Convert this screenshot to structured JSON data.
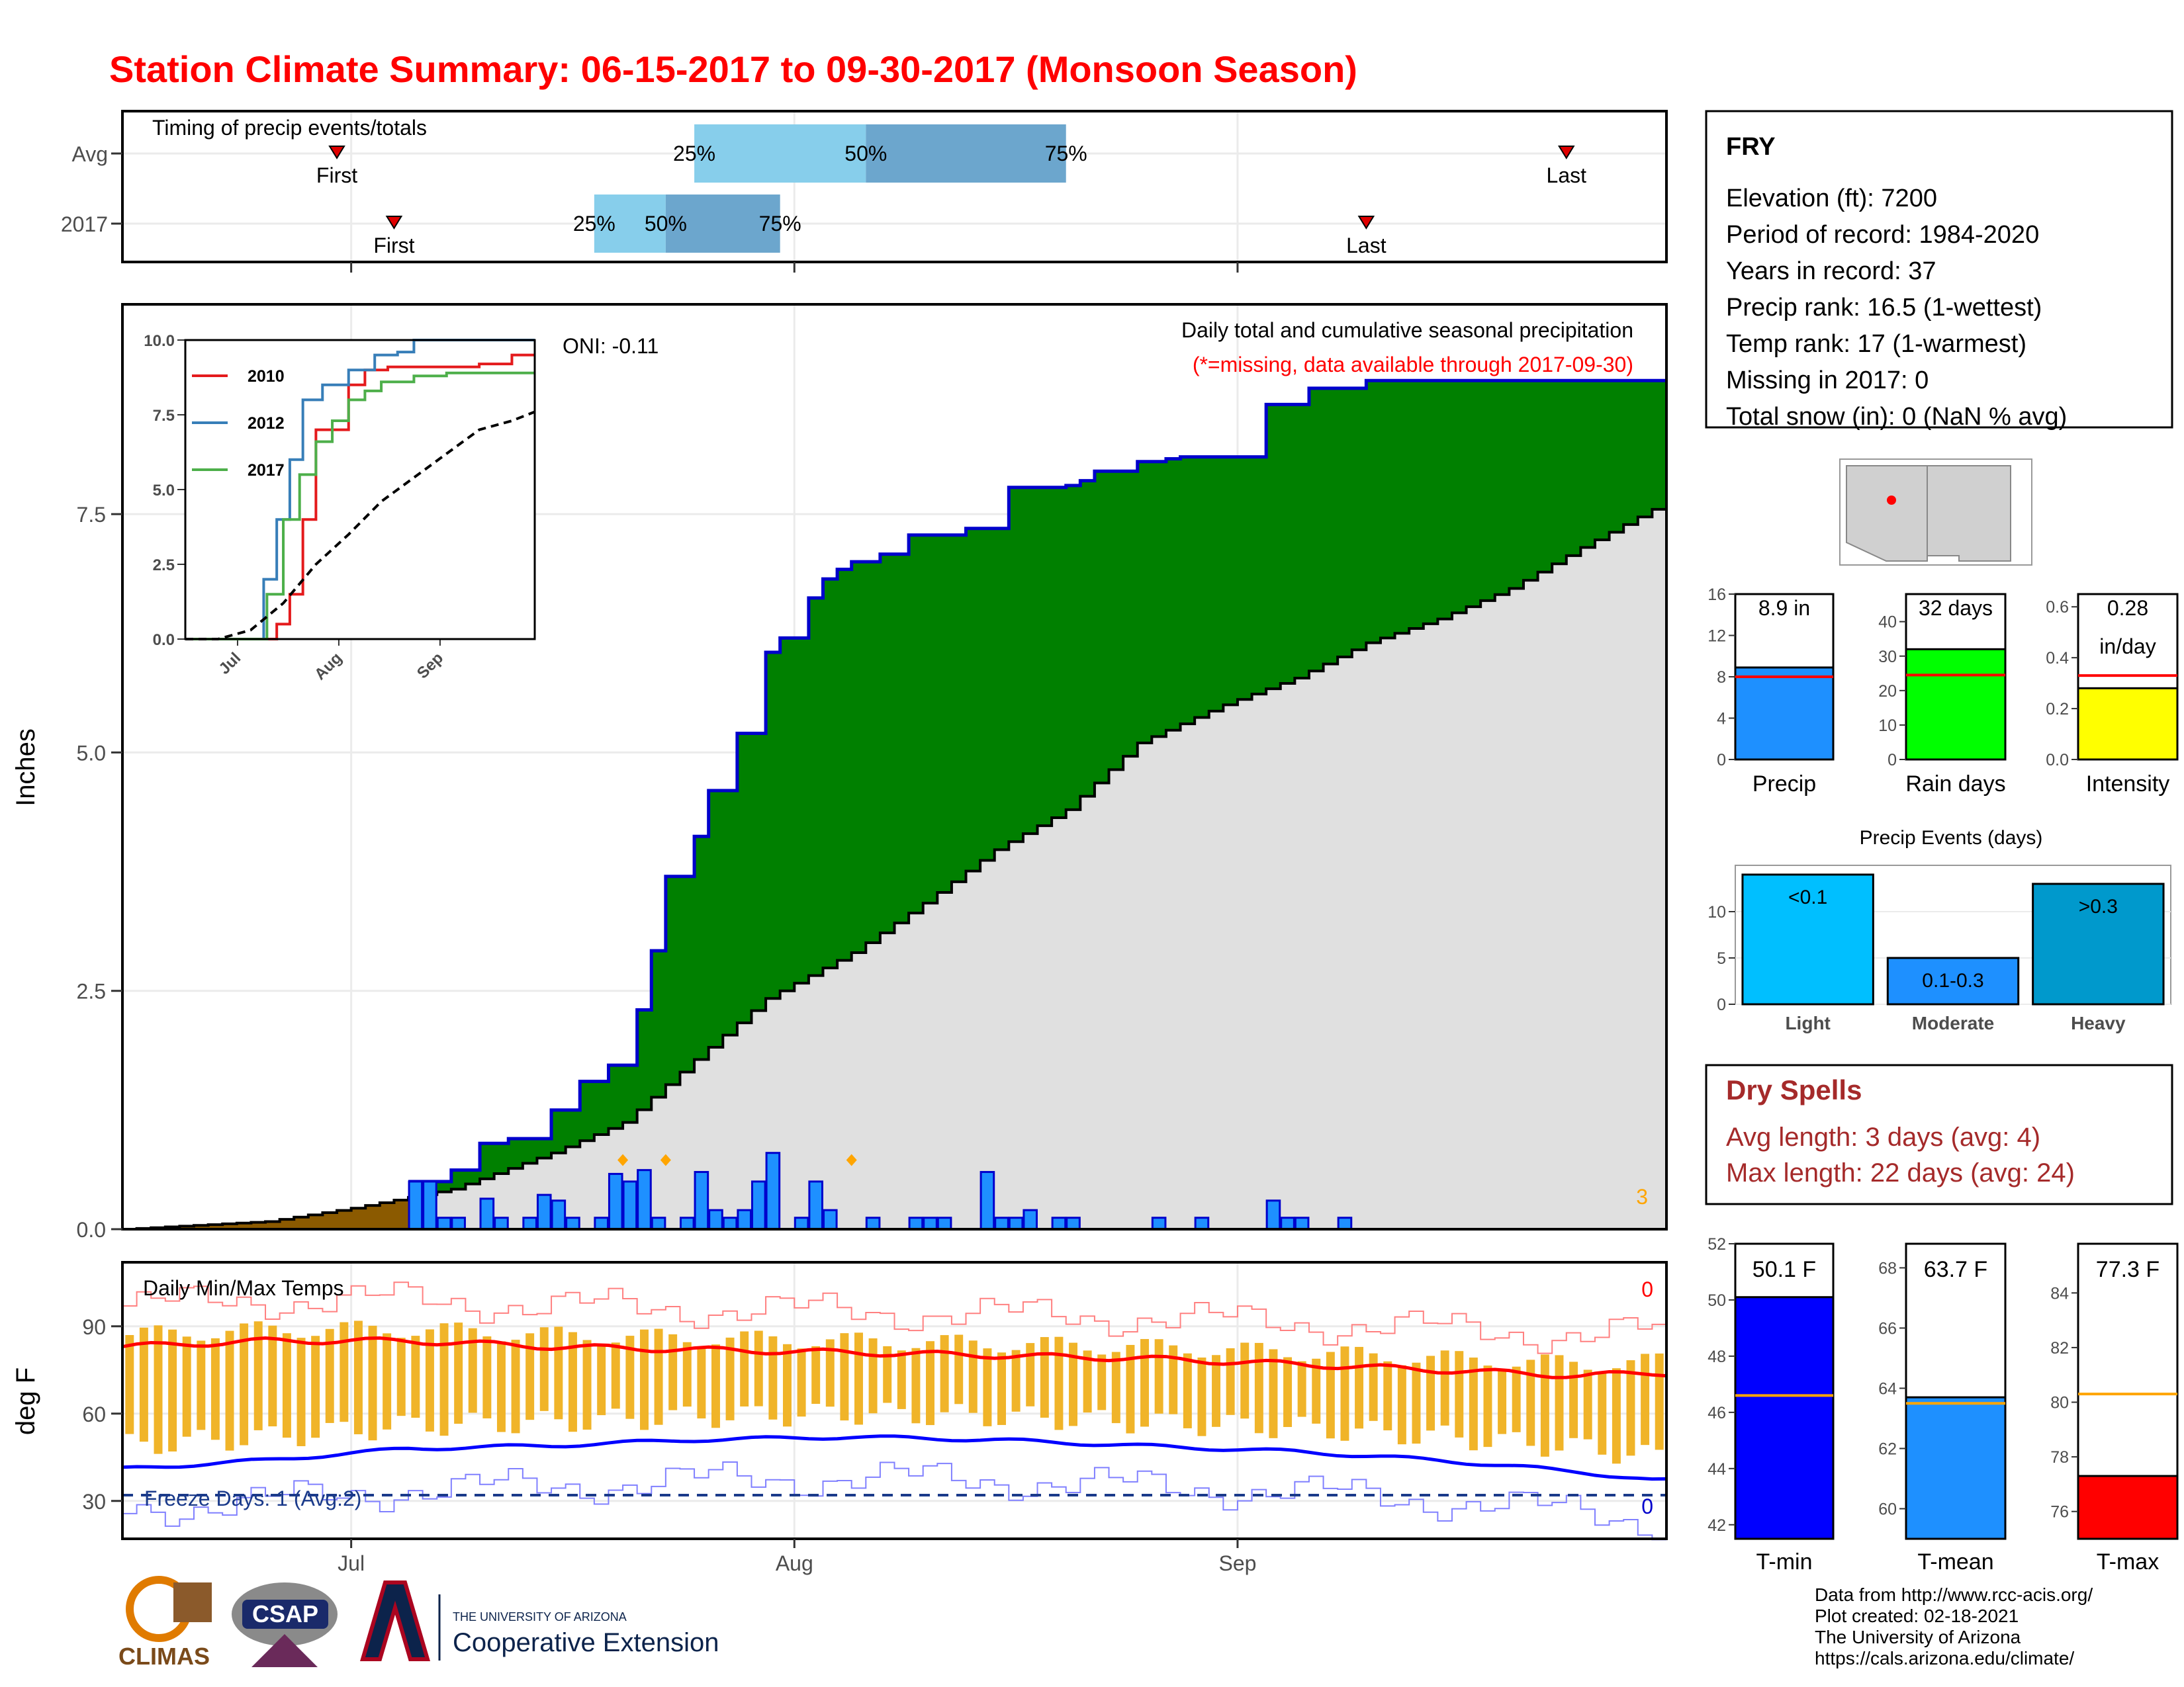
{
  "title": "Station Climate Summary: 06-15-2017 to 09-30-2017 (Monsoon Season)",
  "timing": {
    "label": "Timing of precip events/totals",
    "rows": [
      "Avg",
      "2017"
    ],
    "first_label": "First",
    "last_label": "Last",
    "pct_labels": [
      "25%",
      "50%",
      "75%"
    ],
    "avg": {
      "first": "2017-06-30",
      "p25": "2017-07-25",
      "p50": "2017-08-06",
      "p75": "2017-08-20",
      "last": "2017-09-24"
    },
    "y2017": {
      "first": "2017-07-04",
      "p25": "2017-07-18",
      "p50": "2017-07-23",
      "p75": "2017-07-31",
      "last": "2017-09-10"
    }
  },
  "station": {
    "name": "FRY",
    "lines": [
      "Elevation (ft): 7200",
      "Period of record: 1984-2020",
      "Years in record: 37",
      "Precip rank: 16.5 (1-wettest)",
      "Temp rank: 17 (1-warmest)",
      "Missing in 2017: 0",
      "Total snow (in): 0 (NaN % avg)"
    ]
  },
  "precip_panel": {
    "ylabel": "Inches",
    "caption": "Daily total and cumulative seasonal precipitation",
    "missing_note": "(*=missing, data available through 2017-09-30)",
    "oni_label": "ONI: -0.11",
    "corner_count": "3",
    "colors": {
      "obs": "#008000",
      "avg": "#e0e0e0",
      "pre": "#8b5a00",
      "daily": "#1e90ff",
      "line": "#0000cc"
    }
  },
  "inset": {
    "legend": [
      "2010",
      "2012",
      "2017"
    ],
    "colors": [
      "#e41a1c",
      "#377eb8",
      "#4daf4a"
    ],
    "xticks": [
      "Jul",
      "Aug",
      "Sep"
    ],
    "yticks": [
      "0.0",
      "2.5",
      "5.0",
      "7.5",
      "10.0"
    ]
  },
  "temp_panel": {
    "ylabel": "deg F",
    "label": "Daily Min/Max Temps",
    "freeze_label": "Freeze Days: 1 (Avg:2)",
    "count_max": "0",
    "count_min": "0"
  },
  "xaxis": {
    "ticks": [
      "Jul",
      "Aug",
      "Sep"
    ]
  },
  "small_bars": [
    {
      "label": "Precip",
      "value": 8.9,
      "avg": 8.0,
      "text1": "8.9 in",
      "text2": "",
      "color": "#1e90ff",
      "ymax": 16,
      "ticks": [
        "0",
        "4",
        "8",
        "12",
        "16"
      ]
    },
    {
      "label": "Rain days",
      "value": 32,
      "avg": 24.5,
      "text1": "32 days",
      "text2": "",
      "color": "#00ff00",
      "ymax": 48,
      "ticks": [
        "0",
        "10",
        "20",
        "30",
        "40"
      ]
    },
    {
      "label": "Intensity",
      "value": 0.28,
      "avg": 0.33,
      "text1": "0.28",
      "text2": "in/day",
      "color": "#ffff00",
      "ymax": 0.65,
      "ticks": [
        "0.0",
        "0.2",
        "0.4",
        "0.6"
      ]
    }
  ],
  "events": {
    "title": "Precip Events (days)",
    "categories": [
      "Light",
      "Moderate",
      "Heavy"
    ],
    "values": [
      14,
      5,
      13
    ],
    "labels": [
      "<0.1",
      "0.1-0.3",
      ">0.3"
    ],
    "colors": [
      "#00bfff",
      "#1e90ff",
      "#0099cc"
    ],
    "ticks": [
      "0",
      "5",
      "10"
    ]
  },
  "dry_spells": {
    "title": "Dry Spells",
    "avg_line": "Avg length: 3 days (avg: 4)",
    "max_line": "Max length: 22 days (avg: 24)"
  },
  "temp_bars": [
    {
      "label": "T-min",
      "value": 50.1,
      "avg": 46.6,
      "text": "50.1 F",
      "color": "#0000ff",
      "ymin": 41.5,
      "ymax": 52,
      "ticks": [
        42,
        44,
        46,
        48,
        50,
        52
      ]
    },
    {
      "label": "T-mean",
      "value": 63.7,
      "avg": 63.5,
      "text": "63.7 F",
      "color": "#1e90ff",
      "ymin": 59,
      "ymax": 68.8,
      "ticks": [
        60,
        62,
        64,
        66,
        68
      ]
    },
    {
      "label": "T-max",
      "value": 77.3,
      "avg": 80.3,
      "text": "77.3 F",
      "color": "#ff0000",
      "ymin": 75,
      "ymax": 85.8,
      "ticks": [
        76,
        78,
        80,
        82,
        84
      ]
    }
  ],
  "credits": [
    "Data from http://www.rcc-acis.org/",
    "Plot created: 02-18-2021",
    "The University of Arizona",
    "https://cals.arizona.edu/climate/"
  ],
  "logos": {
    "climas": "CLIMAS",
    "csap": "CSAP",
    "ua_small": "THE UNIVERSITY OF ARIZONA",
    "coop": "Cooperative Extension"
  },
  "chart_data": [
    {
      "type": "area",
      "title": "Daily total and cumulative seasonal precipitation",
      "ylabel": "Inches",
      "ylim": [
        0,
        9.7
      ],
      "xlim": [
        "2017-06-15",
        "2017-09-30"
      ],
      "yticks": [
        0.0,
        2.5,
        5.0,
        7.5
      ],
      "series": [
        {
          "name": "cumulative 2017",
          "x": [
            "2017-07-05",
            "2017-07-08",
            "2017-07-10",
            "2017-07-12",
            "2017-07-15",
            "2017-07-17",
            "2017-07-19",
            "2017-07-21",
            "2017-07-22",
            "2017-07-23",
            "2017-07-25",
            "2017-07-26",
            "2017-07-28",
            "2017-07-30",
            "2017-07-31",
            "2017-08-02",
            "2017-08-03",
            "2017-08-04",
            "2017-08-05",
            "2017-08-07",
            "2017-08-09",
            "2017-08-10",
            "2017-08-13",
            "2017-08-16",
            "2017-08-20",
            "2017-08-21",
            "2017-08-22",
            "2017-08-25",
            "2017-08-27",
            "2017-08-28",
            "2017-09-02",
            "2017-09-03",
            "2017-09-06",
            "2017-09-10",
            "2017-09-30"
          ],
          "y": [
            0.5,
            0.62,
            0.9,
            0.95,
            1.25,
            1.55,
            1.72,
            2.3,
            2.92,
            3.7,
            4.12,
            4.6,
            5.2,
            6.05,
            6.2,
            6.62,
            6.82,
            6.92,
            7.0,
            7.08,
            7.28,
            7.28,
            7.35,
            7.78,
            7.8,
            7.85,
            7.95,
            8.05,
            8.08,
            8.1,
            8.1,
            8.65,
            8.82,
            8.9,
            8.9
          ]
        },
        {
          "name": "average cumulative",
          "x": [
            "2017-06-15",
            "2017-06-25",
            "2017-07-01",
            "2017-07-08",
            "2017-07-15",
            "2017-07-20",
            "2017-07-25",
            "2017-07-30",
            "2017-08-05",
            "2017-08-10",
            "2017-08-15",
            "2017-08-20",
            "2017-08-25",
            "2017-08-31",
            "2017-09-05",
            "2017-09-10",
            "2017-09-15",
            "2017-09-20",
            "2017-09-25",
            "2017-09-30"
          ],
          "y": [
            0.0,
            0.08,
            0.22,
            0.42,
            0.8,
            1.12,
            1.78,
            2.42,
            2.9,
            3.42,
            3.98,
            4.4,
            5.1,
            5.5,
            5.78,
            6.15,
            6.4,
            6.72,
            7.15,
            7.55
          ]
        },
        {
          "name": "daily precip",
          "x": [
            "2017-07-05",
            "2017-07-06",
            "2017-07-07",
            "2017-07-08",
            "2017-07-10",
            "2017-07-11",
            "2017-07-13",
            "2017-07-14",
            "2017-07-15",
            "2017-07-16",
            "2017-07-18",
            "2017-07-19",
            "2017-07-20",
            "2017-07-21",
            "2017-07-22",
            "2017-07-24",
            "2017-07-25",
            "2017-07-26",
            "2017-07-27",
            "2017-07-28",
            "2017-07-29",
            "2017-07-30",
            "2017-08-01",
            "2017-08-02",
            "2017-08-03",
            "2017-08-06",
            "2017-08-09",
            "2017-08-10",
            "2017-08-11",
            "2017-08-14",
            "2017-08-15",
            "2017-08-16",
            "2017-08-17",
            "2017-08-19",
            "2017-08-20",
            "2017-08-26",
            "2017-08-29",
            "2017-09-03",
            "2017-09-04",
            "2017-09-05",
            "2017-09-08"
          ],
          "y": [
            0.5,
            0.5,
            0.12,
            0.12,
            0.32,
            0.12,
            0.12,
            0.36,
            0.3,
            0.12,
            0.12,
            0.58,
            0.5,
            0.62,
            0.12,
            0.12,
            0.6,
            0.2,
            0.12,
            0.2,
            0.5,
            0.8,
            0.12,
            0.5,
            0.2,
            0.12,
            0.12,
            0.12,
            0.12,
            0.6,
            0.12,
            0.12,
            0.2,
            0.12,
            0.12,
            0.12,
            0.12,
            0.3,
            0.12,
            0.12,
            0.12
          ]
        }
      ]
    },
    {
      "type": "line",
      "title": "",
      "xlabel": "",
      "ylabel": "",
      "ylim": [
        0,
        10
      ],
      "x_unit": "days since 06-15",
      "series": [
        {
          "name": "2010",
          "x": [
            0,
            24,
            28,
            32,
            36,
            40,
            50,
            55,
            62,
            70,
            80,
            90,
            100,
            107
          ],
          "y": [
            0,
            0,
            0.5,
            1.5,
            4,
            7,
            8.5,
            9,
            9.1,
            9.1,
            9.1,
            9.2,
            9.5,
            9.5
          ]
        },
        {
          "name": "2012",
          "x": [
            0,
            20,
            24,
            28,
            32,
            36,
            42,
            50,
            58,
            65,
            70,
            80,
            90,
            107
          ],
          "y": [
            0,
            0,
            2,
            4,
            6,
            8,
            8.5,
            9,
            9.5,
            9.6,
            10,
            10,
            10,
            10
          ]
        },
        {
          "name": "2017",
          "x": [
            0,
            20,
            25,
            30,
            35,
            40,
            45,
            50,
            55,
            60,
            70,
            80,
            90,
            107
          ],
          "y": [
            0,
            0,
            1.5,
            4,
            5.5,
            6.6,
            7.3,
            8,
            8.3,
            8.6,
            8.8,
            8.9,
            8.9,
            8.9
          ]
        },
        {
          "name": "average",
          "x": [
            0,
            10,
            20,
            30,
            40,
            50,
            60,
            70,
            80,
            90,
            100,
            107
          ],
          "y": [
            0,
            0,
            0.3,
            1.2,
            2.5,
            3.5,
            4.6,
            5.4,
            6.2,
            7.0,
            7.3,
            7.6
          ]
        }
      ]
    },
    {
      "type": "line",
      "title": "Daily Min/Max Temps",
      "ylabel": "deg F",
      "ylim": [
        17,
        112
      ],
      "yticks": [
        30,
        60,
        90
      ],
      "series": [
        {
          "name": "avg max",
          "x": [
            "2017-06-15",
            "2017-06-25",
            "2017-07-05",
            "2017-07-15",
            "2017-07-25",
            "2017-08-05",
            "2017-08-15",
            "2017-08-25",
            "2017-09-05",
            "2017-09-15",
            "2017-09-25",
            "2017-09-30"
          ],
          "y": [
            83,
            85,
            85,
            83,
            82,
            81,
            80,
            79,
            77,
            75,
            73,
            74
          ]
        },
        {
          "name": "avg min",
          "x": [
            "2017-06-15",
            "2017-06-25",
            "2017-07-05",
            "2017-07-15",
            "2017-07-25",
            "2017-08-05",
            "2017-08-15",
            "2017-08-25",
            "2017-09-05",
            "2017-09-15",
            "2017-09-25",
            "2017-09-30"
          ],
          "y": [
            41,
            44,
            48,
            49,
            51,
            52,
            51,
            49,
            47,
            44,
            40,
            37
          ]
        },
        {
          "name": "freeze line",
          "x": [
            "2017-06-15",
            "2017-09-30"
          ],
          "y": [
            32,
            32
          ]
        }
      ]
    },
    {
      "type": "bar",
      "title": "Precip Events (days)",
      "categories": [
        "Light",
        "Moderate",
        "Heavy"
      ],
      "values": [
        14,
        5,
        13
      ]
    },
    {
      "type": "bar",
      "categories": [
        "Precip",
        "Rain days",
        "Intensity"
      ],
      "values": [
        8.9,
        32,
        0.28
      ]
    },
    {
      "type": "bar",
      "categories": [
        "T-min",
        "T-mean",
        "T-max"
      ],
      "values": [
        50.1,
        63.7,
        77.3
      ]
    }
  ]
}
